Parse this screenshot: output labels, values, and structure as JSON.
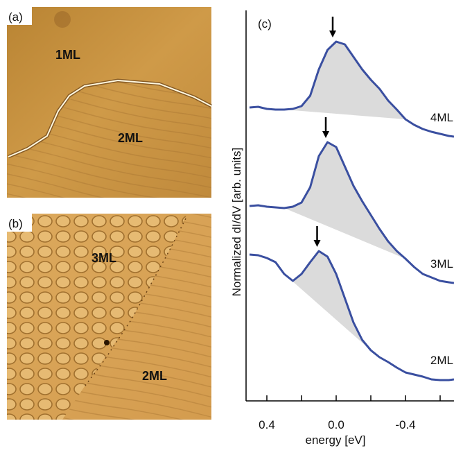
{
  "panels": [
    {
      "label": "(a)",
      "regions": [
        "1ML",
        "2ML"
      ]
    },
    {
      "label": "(b)",
      "regions": [
        "3ML",
        "2ML"
      ]
    }
  ],
  "chart_data": {
    "type": "line",
    "panel_label": "(c)",
    "x_label": "energy [eV]",
    "y_label": "Normalized dI/dV [arb. units]",
    "xlim": [
      0.52,
      -0.68
    ],
    "ylim": [
      0,
      563
    ],
    "xticks": [
      0.4,
      {
        "value": 0,
        "label": "0.0"
      },
      -0.4
    ],
    "minor_xticks": [
      0.2,
      -0.2,
      -0.6
    ],
    "x": [
      0.5,
      0.45,
      0.4,
      0.35,
      0.3,
      0.25,
      0.2,
      0.15,
      0.1,
      0.05,
      0,
      -0.05,
      -0.1,
      -0.15,
      -0.2,
      -0.25,
      -0.3,
      -0.35,
      -0.4,
      -0.45,
      -0.5,
      -0.55,
      -0.6,
      -0.65,
      -0.68
    ],
    "series": [
      {
        "name": "4ML",
        "color": "#3a4fa0",
        "peak": 0.02,
        "shade": [
          0.3,
          -0.4
        ],
        "values": [
          423,
          424,
          421,
          420,
          420,
          421,
          425,
          440,
          478,
          506,
          518,
          514,
          496,
          478,
          463,
          450,
          433,
          420,
          406,
          398,
          392,
          388,
          385,
          382,
          381
        ]
      },
      {
        "name": "3ML",
        "color": "#3a4fa0",
        "peak": 0.06,
        "shade": [
          0.3,
          -0.4
        ],
        "values": [
          281,
          282,
          280,
          279,
          278,
          280,
          286,
          308,
          353,
          373,
          366,
          338,
          310,
          288,
          268,
          248,
          230,
          216,
          205,
          193,
          183,
          178,
          173,
          171,
          170
        ]
      },
      {
        "name": "2ML",
        "color": "#3a4fa0",
        "peak": 0.11,
        "shade": [
          0.3,
          -0.2
        ],
        "values": [
          211,
          210,
          206,
          200,
          183,
          173,
          183,
          200,
          216,
          208,
          183,
          148,
          113,
          88,
          73,
          63,
          56,
          48,
          41,
          38,
          35,
          31,
          30,
          30,
          31
        ]
      }
    ]
  }
}
